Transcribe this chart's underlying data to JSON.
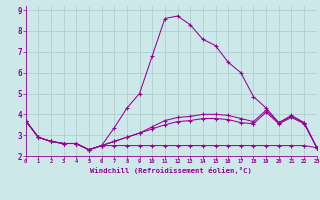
{
  "background_color": "#cce8e8",
  "line_color": "#990099",
  "grid_color": "#aacccc",
  "xlim": [
    0,
    23
  ],
  "ylim": [
    2.0,
    9.2
  ],
  "xticks": [
    0,
    1,
    2,
    3,
    4,
    5,
    6,
    7,
    8,
    9,
    10,
    11,
    12,
    13,
    14,
    15,
    16,
    17,
    18,
    19,
    20,
    21,
    22,
    23
  ],
  "yticks": [
    2,
    3,
    4,
    5,
    6,
    7,
    8,
    9
  ],
  "xlabel": "Windchill (Refroidissement éolien,°C)",
  "lines": [
    [
      3.7,
      2.9,
      2.7,
      2.6,
      2.6,
      2.3,
      2.5,
      3.35,
      4.3,
      5.0,
      6.8,
      8.6,
      8.72,
      8.3,
      7.6,
      7.3,
      6.5,
      6.0,
      4.85,
      4.3,
      3.6,
      3.95,
      3.6,
      2.4
    ],
    [
      3.7,
      2.9,
      2.7,
      2.6,
      2.6,
      2.3,
      2.5,
      2.5,
      2.5,
      2.5,
      2.5,
      2.5,
      2.5,
      2.5,
      2.5,
      2.5,
      2.5,
      2.5,
      2.5,
      2.5,
      2.5,
      2.5,
      2.5,
      2.4
    ],
    [
      3.7,
      2.9,
      2.7,
      2.6,
      2.6,
      2.3,
      2.5,
      2.7,
      2.9,
      3.1,
      3.3,
      3.5,
      3.65,
      3.7,
      3.8,
      3.8,
      3.75,
      3.6,
      3.55,
      4.1,
      3.55,
      3.85,
      3.55,
      2.4
    ],
    [
      3.7,
      2.9,
      2.7,
      2.6,
      2.6,
      2.3,
      2.5,
      2.7,
      2.9,
      3.1,
      3.4,
      3.7,
      3.85,
      3.9,
      4.0,
      4.0,
      3.95,
      3.8,
      3.65,
      4.2,
      3.6,
      3.9,
      3.6,
      2.4
    ]
  ]
}
